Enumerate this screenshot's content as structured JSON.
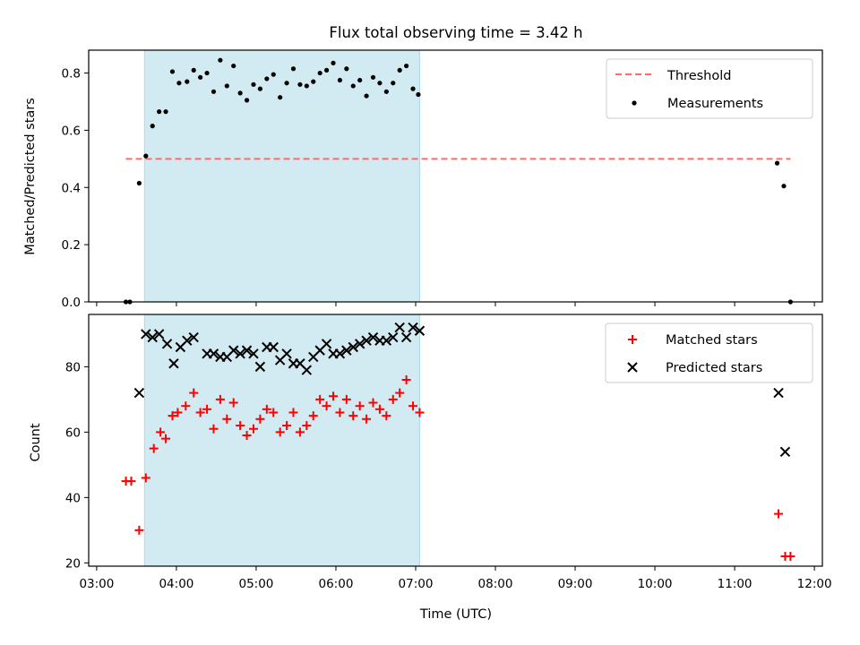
{
  "chart_data": {
    "title": "Flux total observing time = 3.42 h",
    "xlabel": "Time (UTC)",
    "x_range_hours": [
      2.9,
      12.1
    ],
    "x_ticks": [
      "03:00",
      "04:00",
      "05:00",
      "06:00",
      "07:00",
      "08:00",
      "09:00",
      "10:00",
      "11:00",
      "12:00"
    ],
    "shaded_interval": [
      "03:36",
      "07:03"
    ],
    "shade_color": "#add8e6",
    "panels": [
      {
        "type": "scatter",
        "ylabel": "Matched/Predicted stars",
        "ylim": [
          0,
          0.88
        ],
        "y_ticks": [
          0.0,
          0.2,
          0.4,
          0.6,
          0.8
        ],
        "legend_position": "top-right",
        "threshold": {
          "name": "Threshold",
          "y": 0.5,
          "x_range": [
            "03:22",
            "11:42"
          ],
          "color": "#ff6b6b"
        },
        "series": [
          {
            "name": "Measurements",
            "marker": "dot",
            "color": "#000000",
            "points": [
              [
                "03:22",
                0.0
              ],
              [
                "03:25",
                0.0
              ],
              [
                "03:32",
                0.415
              ],
              [
                "03:37",
                0.51
              ],
              [
                "03:42",
                0.615
              ],
              [
                "03:47",
                0.665
              ],
              [
                "03:52",
                0.665
              ],
              [
                "03:57",
                0.805
              ],
              [
                "04:02",
                0.765
              ],
              [
                "04:08",
                0.77
              ],
              [
                "04:13",
                0.81
              ],
              [
                "04:18",
                0.785
              ],
              [
                "04:23",
                0.8
              ],
              [
                "04:28",
                0.735
              ],
              [
                "04:33",
                0.845
              ],
              [
                "04:38",
                0.755
              ],
              [
                "04:43",
                0.825
              ],
              [
                "04:48",
                0.73
              ],
              [
                "04:53",
                0.705
              ],
              [
                "04:58",
                0.76
              ],
              [
                "05:03",
                0.745
              ],
              [
                "05:08",
                0.78
              ],
              [
                "05:13",
                0.795
              ],
              [
                "05:18",
                0.715
              ],
              [
                "05:23",
                0.765
              ],
              [
                "05:28",
                0.815
              ],
              [
                "05:33",
                0.76
              ],
              [
                "05:38",
                0.755
              ],
              [
                "05:43",
                0.77
              ],
              [
                "05:48",
                0.8
              ],
              [
                "05:53",
                0.81
              ],
              [
                "05:58",
                0.835
              ],
              [
                "06:03",
                0.775
              ],
              [
                "06:08",
                0.815
              ],
              [
                "06:13",
                0.755
              ],
              [
                "06:18",
                0.775
              ],
              [
                "06:23",
                0.72
              ],
              [
                "06:28",
                0.785
              ],
              [
                "06:33",
                0.765
              ],
              [
                "06:38",
                0.735
              ],
              [
                "06:43",
                0.765
              ],
              [
                "06:48",
                0.81
              ],
              [
                "06:53",
                0.825
              ],
              [
                "06:58",
                0.745
              ],
              [
                "07:02",
                0.725
              ],
              [
                "11:32",
                0.485
              ],
              [
                "11:37",
                0.405
              ],
              [
                "11:42",
                0.0
              ]
            ]
          }
        ]
      },
      {
        "type": "scatter",
        "ylabel": "Count",
        "ylim": [
          19,
          96
        ],
        "y_ticks": [
          20,
          40,
          60,
          80
        ],
        "legend_position": "top-right",
        "series": [
          {
            "name": "Matched stars",
            "marker": "plus",
            "color": "#ff0000",
            "points": [
              [
                "03:22",
                45
              ],
              [
                "03:26",
                45
              ],
              [
                "03:32",
                30
              ],
              [
                "03:37",
                46
              ],
              [
                "03:43",
                55
              ],
              [
                "03:48",
                60
              ],
              [
                "03:52",
                58
              ],
              [
                "03:57",
                65
              ],
              [
                "04:01",
                66
              ],
              [
                "04:07",
                68
              ],
              [
                "04:13",
                72
              ],
              [
                "04:18",
                66
              ],
              [
                "04:23",
                67
              ],
              [
                "04:28",
                61
              ],
              [
                "04:33",
                70
              ],
              [
                "04:38",
                64
              ],
              [
                "04:43",
                69
              ],
              [
                "04:48",
                62
              ],
              [
                "04:53",
                59
              ],
              [
                "04:58",
                61
              ],
              [
                "05:03",
                64
              ],
              [
                "05:08",
                67
              ],
              [
                "05:13",
                66
              ],
              [
                "05:18",
                60
              ],
              [
                "05:23",
                62
              ],
              [
                "05:28",
                66
              ],
              [
                "05:33",
                60
              ],
              [
                "05:38",
                62
              ],
              [
                "05:43",
                65
              ],
              [
                "05:48",
                70
              ],
              [
                "05:53",
                68
              ],
              [
                "05:58",
                71
              ],
              [
                "06:03",
                66
              ],
              [
                "06:08",
                70
              ],
              [
                "06:13",
                65
              ],
              [
                "06:18",
                68
              ],
              [
                "06:23",
                64
              ],
              [
                "06:28",
                69
              ],
              [
                "06:33",
                67
              ],
              [
                "06:38",
                65
              ],
              [
                "06:43",
                70
              ],
              [
                "06:48",
                72
              ],
              [
                "06:53",
                76
              ],
              [
                "06:58",
                68
              ],
              [
                "07:03",
                66
              ],
              [
                "11:33",
                35
              ],
              [
                "11:38",
                22
              ],
              [
                "11:42",
                22
              ]
            ]
          },
          {
            "name": "Predicted stars",
            "marker": "x",
            "color": "#000000",
            "points": [
              [
                "03:32",
                72
              ],
              [
                "03:37",
                90
              ],
              [
                "03:42",
                89
              ],
              [
                "03:47",
                90
              ],
              [
                "03:53",
                87
              ],
              [
                "03:58",
                81
              ],
              [
                "04:03",
                86
              ],
              [
                "04:08",
                88
              ],
              [
                "04:13",
                89
              ],
              [
                "04:23",
                84
              ],
              [
                "04:28",
                84
              ],
              [
                "04:33",
                83
              ],
              [
                "04:38",
                83
              ],
              [
                "04:43",
                85
              ],
              [
                "04:48",
                84
              ],
              [
                "04:53",
                85
              ],
              [
                "04:58",
                84
              ],
              [
                "05:03",
                80
              ],
              [
                "05:08",
                86
              ],
              [
                "05:13",
                86
              ],
              [
                "05:18",
                82
              ],
              [
                "05:23",
                84
              ],
              [
                "05:28",
                81
              ],
              [
                "05:33",
                81
              ],
              [
                "05:38",
                79
              ],
              [
                "05:43",
                83
              ],
              [
                "05:48",
                85
              ],
              [
                "05:53",
                87
              ],
              [
                "05:58",
                84
              ],
              [
                "06:03",
                84
              ],
              [
                "06:08",
                85
              ],
              [
                "06:13",
                86
              ],
              [
                "06:18",
                87
              ],
              [
                "06:23",
                88
              ],
              [
                "06:28",
                89
              ],
              [
                "06:33",
                88
              ],
              [
                "06:38",
                88
              ],
              [
                "06:43",
                89
              ],
              [
                "06:48",
                92
              ],
              [
                "06:53",
                89
              ],
              [
                "06:58",
                92
              ],
              [
                "07:03",
                91
              ],
              [
                "11:33",
                72
              ],
              [
                "11:38",
                54
              ]
            ]
          }
        ]
      }
    ]
  }
}
